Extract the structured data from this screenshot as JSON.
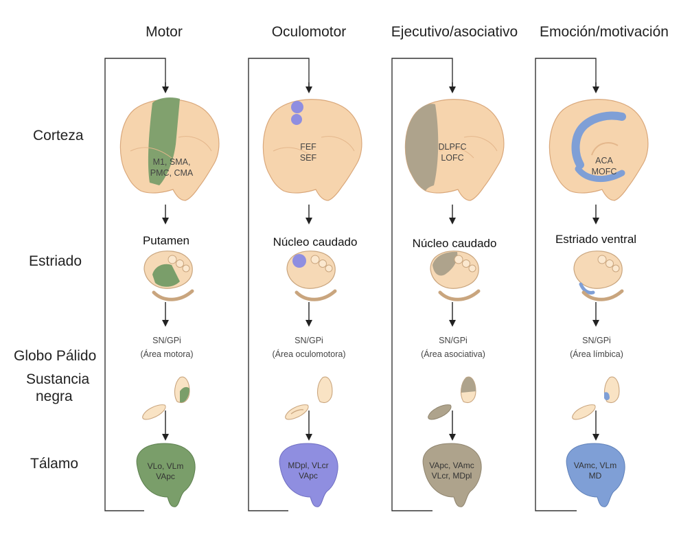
{
  "columns": [
    {
      "title": "Motor",
      "cortex_label": [
        "M1, SMA,",
        "PMC, CMA"
      ],
      "striatum_label": "Putamen",
      "pallidum_label": [
        "SN/GPi",
        "(Área motora)"
      ],
      "thalamus_label": [
        "VLo, VLm",
        "VApc"
      ],
      "color": "#7a9e6a"
    },
    {
      "title": "Oculomotor",
      "cortex_label": [
        "FEF",
        "SEF"
      ],
      "striatum_label": "Núcleo caudado",
      "pallidum_label": [
        "SN/GPi",
        "(Área oculomotora)"
      ],
      "thalamus_label": [
        "MDpl, VLcr",
        "VApc"
      ],
      "color": "#8f8ee0"
    },
    {
      "title": "Ejecutivo/asociativo",
      "cortex_label": [
        "DLPFC",
        "LOFC"
      ],
      "striatum_label": "Núcleo caudado",
      "pallidum_label": [
        "SN/GPi",
        "(Área asociativa)"
      ],
      "thalamus_label": [
        "VApc, VAmc",
        "VLcr, MDpl"
      ],
      "color": "#aea38c"
    },
    {
      "title": "Emoción/motivación",
      "cortex_label": [
        "ACA",
        "MOFC"
      ],
      "striatum_label": "Estriado ventral",
      "pallidum_label": [
        "SN/GPi",
        "(Área límbica)"
      ],
      "thalamus_label": [
        "VAmc, VLm",
        "MD"
      ],
      "color": "#7f9fd6"
    }
  ],
  "rows": {
    "cortex": "Corteza",
    "striatum": "Estriado",
    "pallidum": "Globo Pálido",
    "substantia": [
      "Sustancia",
      "negra"
    ],
    "thalamus": "Tálamo"
  }
}
